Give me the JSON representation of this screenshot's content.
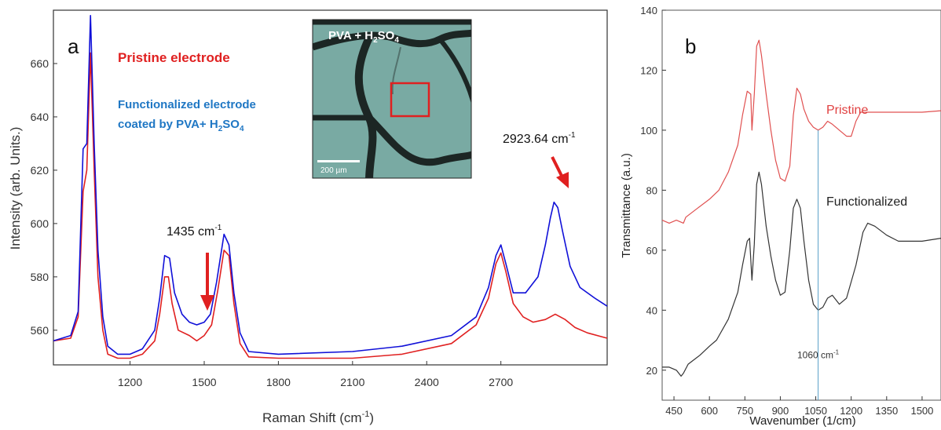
{
  "chart_data": [
    {
      "panel": "a",
      "type": "line",
      "xlabel": "Raman Shift (cm",
      "xlabel_sup": "-1",
      "xlabel_end": ")",
      "ylabel": "Intensity (arb. Units.)",
      "xlim": [
        890,
        3130
      ],
      "ylim": [
        547,
        680
      ],
      "xticks": [
        1200,
        1500,
        1800,
        2100,
        2400,
        2700
      ],
      "yticks": [
        560,
        580,
        600,
        620,
        640,
        660
      ],
      "legend": {
        "red": "Pristine electrode",
        "blue_line1": "Functionalized electrode",
        "blue_line2_prefix": "coated by PVA+ H",
        "blue_sub1": "2",
        "blue_mid": "SO",
        "blue_sub2": "4"
      },
      "annotations": {
        "peak1_main": "1435 cm",
        "peak1_sup": "-1",
        "peak2_main": "2923.64 cm",
        "peak2_sup": "-1"
      },
      "inset": {
        "title_prefix": "PVA + H",
        "title_sub1": "2",
        "title_mid": "SO",
        "title_sub2": "4",
        "scale_bar": "200 µm"
      },
      "series": [
        {
          "name": "Pristine electrode",
          "color": "#e02020",
          "points": [
            [
              890,
              556
            ],
            [
              960,
              557
            ],
            [
              990,
              565
            ],
            [
              1010,
              612
            ],
            [
              1025,
              620
            ],
            [
              1040,
              664
            ],
            [
              1055,
              620
            ],
            [
              1070,
              580
            ],
            [
              1090,
              560
            ],
            [
              1110,
              551
            ],
            [
              1150,
              549.5
            ],
            [
              1200,
              549.5
            ],
            [
              1250,
              551
            ],
            [
              1300,
              556
            ],
            [
              1320,
              566
            ],
            [
              1340,
              580
            ],
            [
              1355,
              580
            ],
            [
              1370,
              570
            ],
            [
              1395,
              560
            ],
            [
              1440,
              558
            ],
            [
              1470,
              556
            ],
            [
              1500,
              558
            ],
            [
              1530,
              562
            ],
            [
              1555,
              575
            ],
            [
              1580,
              590
            ],
            [
              1600,
              588
            ],
            [
              1620,
              570
            ],
            [
              1645,
              555
            ],
            [
              1680,
              550
            ],
            [
              1800,
              549.5
            ],
            [
              2100,
              549.5
            ],
            [
              2300,
              551
            ],
            [
              2500,
              555
            ],
            [
              2600,
              562
            ],
            [
              2650,
              572
            ],
            [
              2680,
              585
            ],
            [
              2700,
              589
            ],
            [
              2720,
              582
            ],
            [
              2750,
              570
            ],
            [
              2790,
              565
            ],
            [
              2830,
              563
            ],
            [
              2880,
              564
            ],
            [
              2920,
              566
            ],
            [
              2960,
              564
            ],
            [
              3000,
              561
            ],
            [
              3050,
              559
            ],
            [
              3130,
              557
            ]
          ]
        },
        {
          "name": "Functionalized electrode coated by PVA+ H2SO4",
          "color": "#1010d8",
          "points": [
            [
              890,
              556
            ],
            [
              960,
              558
            ],
            [
              990,
              567
            ],
            [
              1010,
              628
            ],
            [
              1025,
              630
            ],
            [
              1040,
              678
            ],
            [
              1055,
              630
            ],
            [
              1070,
              590
            ],
            [
              1090,
              565
            ],
            [
              1110,
              554
            ],
            [
              1150,
              551
            ],
            [
              1200,
              551
            ],
            [
              1250,
              553
            ],
            [
              1300,
              560
            ],
            [
              1320,
              572
            ],
            [
              1340,
              588
            ],
            [
              1360,
              587
            ],
            [
              1380,
              574
            ],
            [
              1410,
              566
            ],
            [
              1440,
              563
            ],
            [
              1470,
              562
            ],
            [
              1500,
              563
            ],
            [
              1525,
              566
            ],
            [
              1550,
              578
            ],
            [
              1580,
              596
            ],
            [
              1600,
              592
            ],
            [
              1620,
              574
            ],
            [
              1645,
              559
            ],
            [
              1680,
              552
            ],
            [
              1800,
              551
            ],
            [
              2100,
              552
            ],
            [
              2300,
              554
            ],
            [
              2500,
              558
            ],
            [
              2600,
              565
            ],
            [
              2650,
              576
            ],
            [
              2680,
              588
            ],
            [
              2700,
              592
            ],
            [
              2720,
              585
            ],
            [
              2750,
              574
            ],
            [
              2800,
              574
            ],
            [
              2850,
              580
            ],
            [
              2880,
              592
            ],
            [
              2900,
              602
            ],
            [
              2915,
              608
            ],
            [
              2930,
              606
            ],
            [
              2950,
              597
            ],
            [
              2980,
              584
            ],
            [
              3020,
              576
            ],
            [
              3080,
              572
            ],
            [
              3130,
              569
            ]
          ]
        }
      ]
    },
    {
      "panel": "b",
      "type": "line",
      "xlabel": "Wavenumber (1/cm)",
      "ylabel": "Transmittance (a.u.)",
      "xlim": [
        400,
        1580
      ],
      "ylim": [
        10,
        140
      ],
      "xticks": [
        450,
        600,
        750,
        900,
        1050,
        1200,
        1350,
        1500
      ],
      "yticks": [
        20,
        40,
        60,
        80,
        100,
        120,
        140
      ],
      "vline": {
        "x": 1060,
        "label_main": "1060 cm",
        "label_sup": "-1"
      },
      "series": [
        {
          "name": "Pristine",
          "color": "#e05050",
          "points": [
            [
              400,
              70
            ],
            [
              430,
              69
            ],
            [
              460,
              70
            ],
            [
              490,
              69
            ],
            [
              500,
              71
            ],
            [
              550,
              74
            ],
            [
              600,
              77
            ],
            [
              640,
              80
            ],
            [
              680,
              86
            ],
            [
              720,
              95
            ],
            [
              740,
              105
            ],
            [
              760,
              113
            ],
            [
              775,
              112
            ],
            [
              780,
              100
            ],
            [
              790,
              112
            ],
            [
              800,
              128
            ],
            [
              810,
              130
            ],
            [
              820,
              125
            ],
            [
              840,
              112
            ],
            [
              860,
              100
            ],
            [
              880,
              90
            ],
            [
              900,
              84
            ],
            [
              920,
              83
            ],
            [
              940,
              88
            ],
            [
              955,
              105
            ],
            [
              970,
              114
            ],
            [
              985,
              112
            ],
            [
              1000,
              107
            ],
            [
              1020,
              103
            ],
            [
              1040,
              101
            ],
            [
              1060,
              100
            ],
            [
              1080,
              101
            ],
            [
              1100,
              103
            ],
            [
              1120,
              102
            ],
            [
              1150,
              100
            ],
            [
              1180,
              98
            ],
            [
              1200,
              98
            ],
            [
              1220,
              103
            ],
            [
              1240,
              106
            ],
            [
              1300,
              106
            ],
            [
              1400,
              106
            ],
            [
              1500,
              106
            ],
            [
              1580,
              106.5
            ]
          ]
        },
        {
          "name": "Functionalized",
          "color": "#333333",
          "points": [
            [
              400,
              21
            ],
            [
              430,
              21
            ],
            [
              460,
              20
            ],
            [
              480,
              18
            ],
            [
              490,
              19
            ],
            [
              510,
              22
            ],
            [
              560,
              25
            ],
            [
              600,
              28
            ],
            [
              630,
              30
            ],
            [
              680,
              37
            ],
            [
              720,
              46
            ],
            [
              740,
              55
            ],
            [
              760,
              63
            ],
            [
              770,
              64
            ],
            [
              780,
              50
            ],
            [
              790,
              62
            ],
            [
              800,
              82
            ],
            [
              810,
              86
            ],
            [
              820,
              82
            ],
            [
              840,
              68
            ],
            [
              860,
              58
            ],
            [
              880,
              50
            ],
            [
              900,
              45
            ],
            [
              920,
              46
            ],
            [
              940,
              60
            ],
            [
              955,
              74
            ],
            [
              970,
              77
            ],
            [
              985,
              74
            ],
            [
              1000,
              63
            ],
            [
              1020,
              50
            ],
            [
              1040,
              42
            ],
            [
              1060,
              40
            ],
            [
              1080,
              41
            ],
            [
              1100,
              44
            ],
            [
              1120,
              45
            ],
            [
              1150,
              42
            ],
            [
              1180,
              44
            ],
            [
              1220,
              55
            ],
            [
              1250,
              66
            ],
            [
              1270,
              69
            ],
            [
              1300,
              68
            ],
            [
              1350,
              65
            ],
            [
              1400,
              63
            ],
            [
              1450,
              63
            ],
            [
              1500,
              63
            ],
            [
              1580,
              64
            ]
          ]
        }
      ],
      "labels": {
        "pristine": "Pristine",
        "functionalized": "Functionalized"
      }
    }
  ],
  "panel_labels": {
    "a": "a",
    "b": "b"
  }
}
